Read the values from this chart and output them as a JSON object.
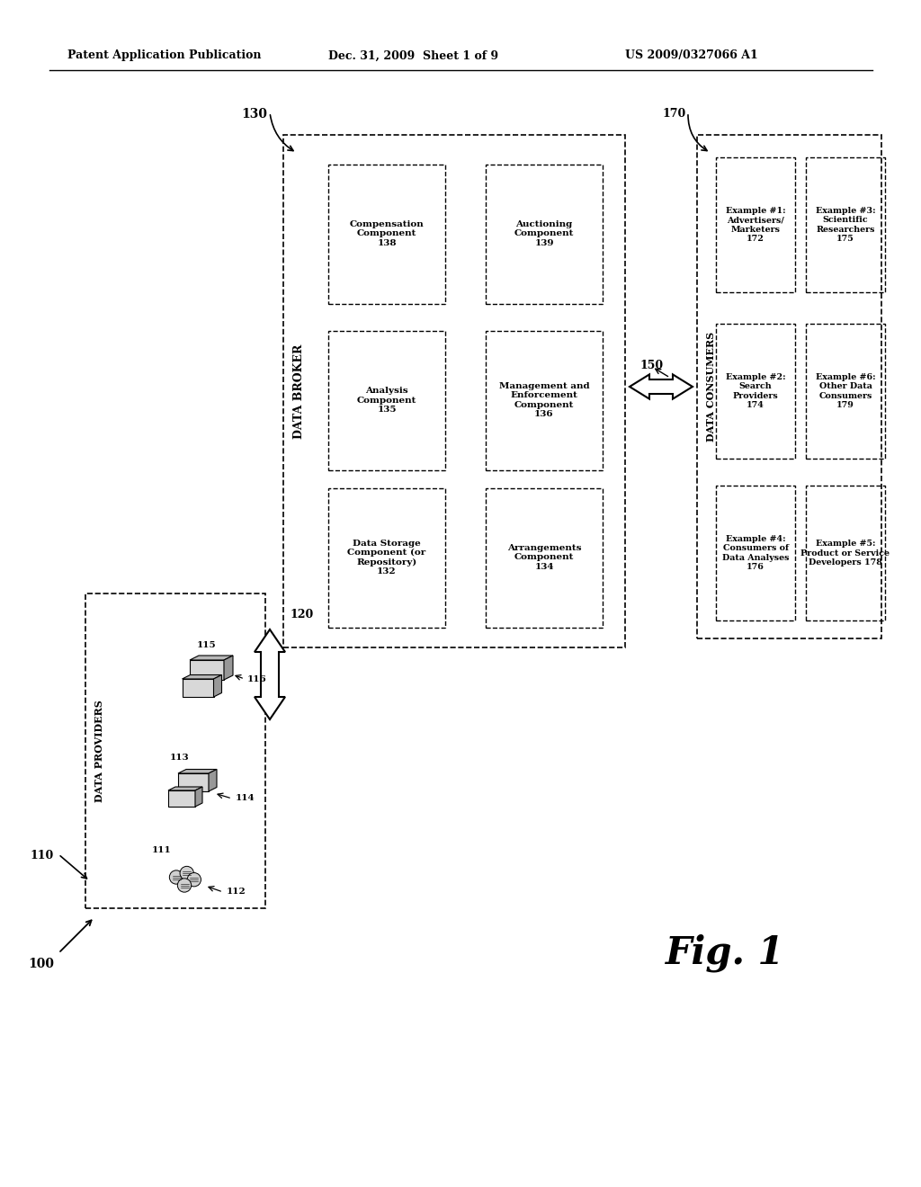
{
  "header_left": "Patent Application Publication",
  "header_mid": "Dec. 31, 2009  Sheet 1 of 9",
  "header_right": "US 2009/0327066 A1",
  "fig_label": "Fig. 1",
  "bg_color": "#ffffff",
  "text_color": "#000000",
  "label_100": "100",
  "label_110": "110",
  "label_115": "115",
  "label_116": "116",
  "label_113": "113",
  "label_114": "114",
  "label_111": "111",
  "label_112": "112",
  "label_120": "120",
  "label_130": "130",
  "label_150": "150",
  "label_170": "170",
  "dp_title": "DATA PROVIDERS",
  "db_title": "DATA BROKER",
  "dc_title": "DATA CONSUMERS",
  "box_132_text": "Data Storage\nComponent (or\nRepository)\n132",
  "box_134_text": "Arrangements\nComponent\n134",
  "box_135_text": "Analysis\nComponent\n135",
  "box_136_text": "Management and\nEnforcement\nComponent\n136",
  "box_138_text": "Compensation\nComponent\n138",
  "box_139_text": "Auctioning\nComponent\n139",
  "box_172_text": "Example #1:\nAdvertisers/\nMarketers\n172",
  "box_174_text": "Example #2:\nSearch\nProviders\n174",
  "box_175_text": "Example #3:\nScientific\nResearchers\n175",
  "box_176_text": "Example #4:\nConsumers of\nData Analyses\n176",
  "box_178_text": "Example #5:\nProduct or Service\nDevelopers 178",
  "box_179_text": "Example #6:\nOther Data\nConsumers\n179"
}
